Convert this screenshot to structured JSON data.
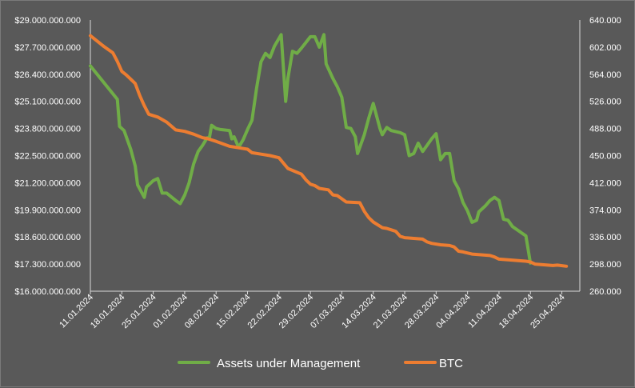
{
  "chart_data": {
    "type": "line",
    "title": "",
    "legend_position": "bottom",
    "grid": false,
    "y_left": {
      "min": 16000000000,
      "max": 29000000000,
      "tick_labels": [
        "$16.000.000.000",
        "$17.300.000.000",
        "$18.600.000.000",
        "$19.900.000.000",
        "$21.200.000.000",
        "$22.500.000.000",
        "$23.800.000.000",
        "$25.100.000.000",
        "$26.400.000.000",
        "$27.700.000.000",
        "$29.000.000.000"
      ]
    },
    "y_right": {
      "min": 260000,
      "max": 640000,
      "tick_labels": [
        "260.000",
        "298.000",
        "336.000",
        "374.000",
        "412.000",
        "450.000",
        "488.000",
        "526.000",
        "564.000",
        "602.000",
        "640.000"
      ]
    },
    "x_tick_labels": [
      "11.01.2024",
      "18.01.2024",
      "25.01.2024",
      "01.02.2024",
      "08.02.2024",
      "15.02.2024",
      "22.02.2024",
      "29.02.2024",
      "07.03.2024",
      "14.03.2024",
      "21.03.2024",
      "28.03.2024",
      "04.04.2024",
      "11.04.2024",
      "18.04.2024",
      "25.04.2024"
    ],
    "x_range_days": [
      0,
      109
    ],
    "series": [
      {
        "name": "Assets under Management",
        "axis": "left",
        "color": "#70ad47",
        "points": [
          [
            0,
            26800000000
          ],
          [
            6,
            25200000000
          ],
          [
            6.5,
            23900000000
          ],
          [
            7.5,
            23700000000
          ],
          [
            9,
            22800000000
          ],
          [
            10,
            22000000000
          ],
          [
            10.5,
            21100000000
          ],
          [
            12,
            20500000000
          ],
          [
            12.5,
            21000000000
          ],
          [
            14,
            21300000000
          ],
          [
            15,
            21400000000
          ],
          [
            16,
            20700000000
          ],
          [
            17,
            20700000000
          ],
          [
            19,
            20350000000
          ],
          [
            20,
            20200000000
          ],
          [
            21,
            20600000000
          ],
          [
            22,
            21200000000
          ],
          [
            23,
            22100000000
          ],
          [
            24,
            22700000000
          ],
          [
            25,
            23000000000
          ],
          [
            26,
            23350000000
          ],
          [
            26.5,
            23350000000
          ],
          [
            27,
            23950000000
          ],
          [
            28,
            23800000000
          ],
          [
            29,
            23750000000
          ],
          [
            31,
            23700000000
          ],
          [
            31.5,
            23300000000
          ],
          [
            32,
            23400000000
          ],
          [
            33,
            22900000000
          ],
          [
            34,
            23250000000
          ],
          [
            35,
            23750000000
          ],
          [
            36,
            24200000000
          ],
          [
            37,
            25700000000
          ],
          [
            38,
            27000000000
          ],
          [
            39,
            27400000000
          ],
          [
            40,
            27200000000
          ],
          [
            41,
            27750000000
          ],
          [
            42.5,
            28300000000
          ],
          [
            43.5,
            25100000000
          ],
          [
            44,
            26200000000
          ],
          [
            45,
            27500000000
          ],
          [
            46,
            27400000000
          ],
          [
            47,
            27650000000
          ],
          [
            49,
            28200000000
          ],
          [
            50,
            28200000000
          ],
          [
            51,
            27700000000
          ],
          [
            52,
            28300000000
          ],
          [
            52.5,
            26900000000
          ],
          [
            54,
            26200000000
          ],
          [
            55,
            25800000000
          ],
          [
            56,
            25300000000
          ],
          [
            57,
            23850000000
          ],
          [
            58,
            23800000000
          ],
          [
            59,
            23400000000
          ],
          [
            59.5,
            22600000000
          ],
          [
            61,
            23500000000
          ],
          [
            62,
            24300000000
          ],
          [
            63,
            25000000000
          ],
          [
            64.5,
            23800000000
          ],
          [
            65,
            23500000000
          ],
          [
            66,
            23850000000
          ],
          [
            67,
            23700000000
          ],
          [
            69,
            23600000000
          ],
          [
            70,
            23500000000
          ],
          [
            71,
            22500000000
          ],
          [
            72,
            22600000000
          ],
          [
            73,
            23100000000
          ],
          [
            74,
            22700000000
          ],
          [
            75,
            23000000000
          ],
          [
            76,
            23300000000
          ],
          [
            77,
            23550000000
          ],
          [
            78,
            22300000000
          ],
          [
            79,
            22600000000
          ],
          [
            80,
            22600000000
          ],
          [
            81,
            21300000000
          ],
          [
            82,
            20900000000
          ],
          [
            83,
            20250000000
          ],
          [
            84,
            19850000000
          ],
          [
            85,
            19300000000
          ],
          [
            86,
            19400000000
          ],
          [
            86.5,
            19800000000
          ],
          [
            88,
            20100000000
          ],
          [
            89,
            20350000000
          ],
          [
            90,
            20500000000
          ],
          [
            91,
            20350000000
          ],
          [
            92,
            19450000000
          ],
          [
            93,
            19400000000
          ],
          [
            94,
            19100000000
          ],
          [
            96,
            18800000000
          ],
          [
            97,
            18650000000
          ],
          [
            98,
            17350000000
          ]
        ]
      },
      {
        "name": "BTC",
        "axis": "right",
        "color": "#ed7d31",
        "points": [
          [
            0,
            618000
          ],
          [
            3,
            603000
          ],
          [
            5,
            594000
          ],
          [
            6,
            582000
          ],
          [
            7,
            568000
          ],
          [
            8,
            563000
          ],
          [
            9,
            557000
          ],
          [
            10,
            551000
          ],
          [
            11,
            534000
          ],
          [
            12,
            520000
          ],
          [
            13,
            508000
          ],
          [
            15,
            504000
          ],
          [
            17,
            497000
          ],
          [
            19,
            486000
          ],
          [
            21,
            484000
          ],
          [
            23,
            480000
          ],
          [
            25,
            475000
          ],
          [
            26,
            474000
          ],
          [
            28,
            470000
          ],
          [
            31,
            463000
          ],
          [
            33,
            461000
          ],
          [
            35,
            459000
          ],
          [
            36,
            454000
          ],
          [
            38,
            452000
          ],
          [
            40,
            450000
          ],
          [
            42,
            447000
          ],
          [
            44,
            432000
          ],
          [
            47,
            424000
          ],
          [
            48,
            416000
          ],
          [
            49,
            410000
          ],
          [
            50,
            408000
          ],
          [
            51,
            404000
          ],
          [
            53,
            402000
          ],
          [
            54,
            395000
          ],
          [
            55,
            394000
          ],
          [
            57,
            385000
          ],
          [
            60,
            384000
          ],
          [
            61,
            372000
          ],
          [
            62,
            363000
          ],
          [
            63,
            357000
          ],
          [
            65,
            349000
          ],
          [
            66,
            348000
          ],
          [
            67,
            346000
          ],
          [
            68,
            344000
          ],
          [
            69,
            337000
          ],
          [
            70,
            335000
          ],
          [
            72,
            334000
          ],
          [
            74,
            333000
          ],
          [
            75,
            329000
          ],
          [
            76,
            327000
          ],
          [
            78,
            325000
          ],
          [
            80,
            324000
          ],
          [
            81,
            322000
          ],
          [
            82,
            316000
          ],
          [
            83,
            315000
          ],
          [
            85,
            312000
          ],
          [
            87,
            311000
          ],
          [
            89,
            310000
          ],
          [
            90,
            308000
          ],
          [
            91,
            305000
          ],
          [
            93,
            304000
          ],
          [
            95,
            303000
          ],
          [
            97,
            302000
          ],
          [
            98,
            301000
          ],
          [
            99,
            298000
          ],
          [
            103,
            296000
          ],
          [
            104,
            296500
          ],
          [
            106,
            295000
          ]
        ]
      }
    ]
  }
}
